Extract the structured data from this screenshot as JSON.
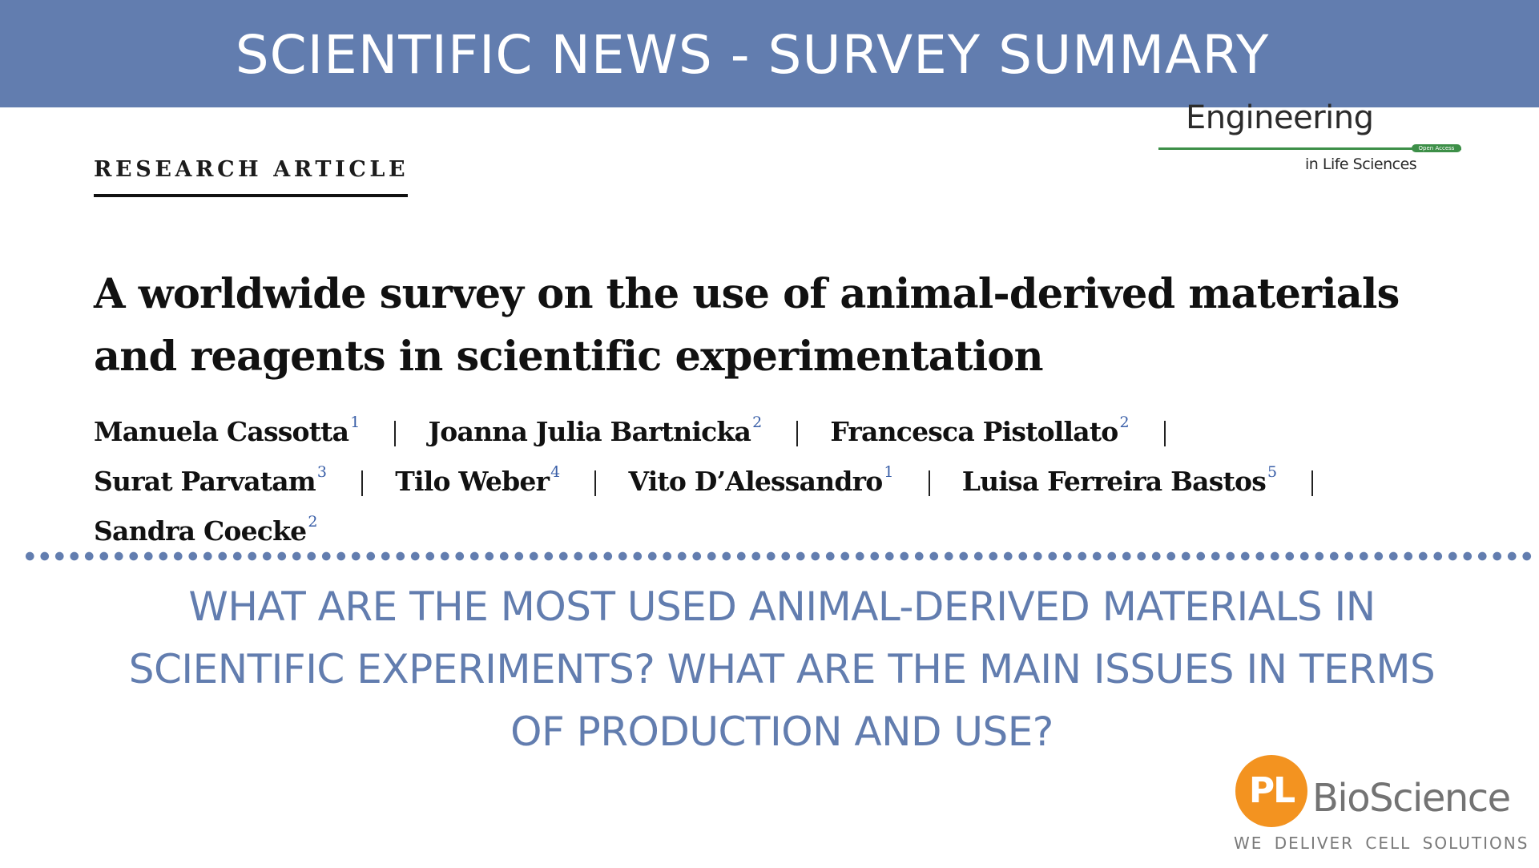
{
  "banner": {
    "title": "SCIENTIFIC NEWS - SURVEY SUMMARY",
    "background_color": "#627daf"
  },
  "journal_logo": {
    "name": "Engineering",
    "badge": "Open Access",
    "subtitle": "in Life Sciences",
    "accent_color": "#3d8f48"
  },
  "article": {
    "type": "RESEARCH ARTICLE",
    "title_line1": "A worldwide survey on the use of animal-derived materials",
    "title_line2": "and reagents in scientific experimentation",
    "authors": [
      {
        "name": "Manuela Cassotta",
        "affiliation": "1"
      },
      {
        "name": "Joanna Julia Bartnicka",
        "affiliation": "2"
      },
      {
        "name": "Francesca Pistollato",
        "affiliation": "2"
      },
      {
        "name": "Surat Parvatam",
        "affiliation": "3"
      },
      {
        "name": "Tilo Weber",
        "affiliation": "4"
      },
      {
        "name": "Vito D’Alessandro",
        "affiliation": "1"
      },
      {
        "name": "Luisa Ferreira Bastos",
        "affiliation": "5"
      },
      {
        "name": "Sandra Coecke",
        "affiliation": "2"
      }
    ]
  },
  "question": {
    "line1": "WHAT ARE THE MOST USED ANIMAL-DERIVED MATERIALS IN",
    "line2": "SCIENTIFIC EXPERIMENTS? WHAT ARE THE MAIN ISSUES IN TERMS",
    "line3": "OF PRODUCTION AND USE?",
    "color": "#627daf"
  },
  "brand": {
    "mark": "PL",
    "name": "BioScience",
    "tagline": "WE DELIVER CELL SOLUTIONS",
    "mark_color": "#f39320"
  }
}
